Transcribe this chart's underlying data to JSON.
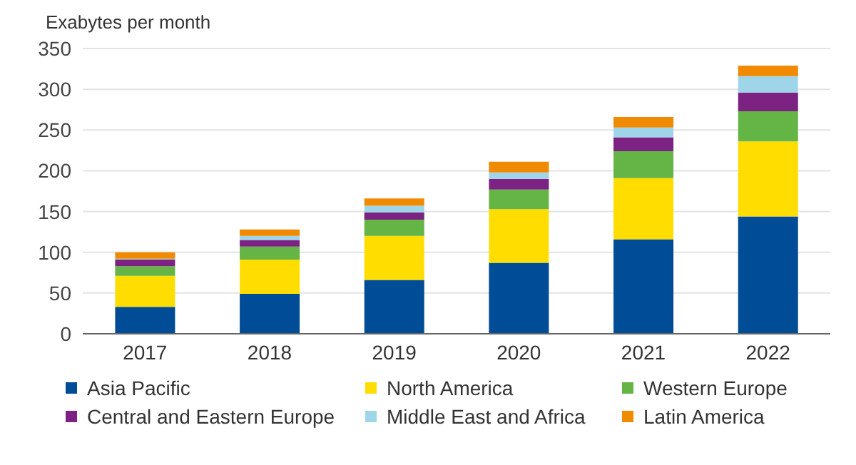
{
  "chart_data": {
    "type": "bar",
    "stacked": true,
    "ylabel": "Exabytes per month",
    "categories": [
      "2017",
      "2018",
      "2019",
      "2020",
      "2021",
      "2022"
    ],
    "series": [
      {
        "name": "Asia Pacific",
        "color": "#004c97",
        "values": [
          33,
          49,
          66,
          87,
          116,
          144
        ]
      },
      {
        "name": "North America",
        "color": "#ffdd00",
        "values": [
          38,
          42,
          54,
          66,
          75,
          92
        ]
      },
      {
        "name": "Western Europe",
        "color": "#64b446",
        "values": [
          12,
          16,
          20,
          24,
          33,
          37
        ]
      },
      {
        "name": "Central and Eastern Europe",
        "color": "#7b2282",
        "values": [
          8,
          8,
          9,
          13,
          17,
          23
        ]
      },
      {
        "name": "Middle East and Africa",
        "color": "#9fd5e8",
        "values": [
          1,
          5,
          8,
          8,
          12,
          20
        ]
      },
      {
        "name": "Latin America",
        "color": "#f08a00",
        "values": [
          8,
          8,
          9,
          13,
          13,
          13
        ]
      }
    ],
    "ylim": [
      0,
      350
    ],
    "yticks": [
      0,
      50,
      100,
      150,
      200,
      250,
      300,
      350
    ],
    "grid": "y",
    "legend": "bottom"
  }
}
